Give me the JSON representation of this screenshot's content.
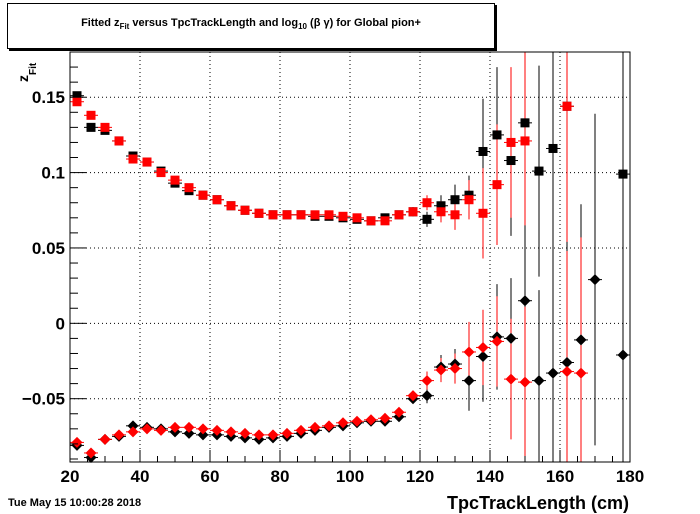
{
  "title": {
    "part1": "Fitted  z",
    "sub1": "Fit",
    "part2": "  versus TpcTrackLength and log",
    "sub2": "10",
    "part3": " (β γ) for Global pion+"
  },
  "timestamp": "Tue May 15 10:00:28 2018",
  "colors": {
    "series1": "#000000",
    "series2": "#ff0000",
    "frame": "#000000",
    "grid": "#000000"
  },
  "chart_data": {
    "type": "scatter",
    "title": "Fitted  zFit  versus TpcTrackLength and log10 (β γ) for Global pion+",
    "xlabel": "TpcTrackLength (cm)",
    "ylabel_main": "z",
    "ylabel_sub": "Fit",
    "xlim": [
      20,
      180
    ],
    "ylim": [
      -0.092,
      0.18
    ],
    "xticks": [
      20,
      40,
      60,
      80,
      100,
      120,
      140,
      160,
      180
    ],
    "xtick_labels": [
      "20",
      "40",
      "60",
      "80",
      "100",
      "120",
      "140",
      "160",
      "180"
    ],
    "yticks": [
      -0.05,
      0,
      0.05,
      0.1,
      0.15
    ],
    "ytick_labels": [
      "−0.05",
      "0",
      "0.05",
      "0.1",
      "0.15"
    ],
    "grid": true,
    "series": [
      {
        "marker": "square",
        "color": "#000000",
        "points": [
          [
            22,
            0.151,
            0.002
          ],
          [
            26,
            0.13,
            0.002
          ],
          [
            30,
            0.128,
            0.002
          ],
          [
            34,
            0.121,
            0.002
          ],
          [
            38,
            0.111,
            0.002
          ],
          [
            42,
            0.107,
            0.002
          ],
          [
            46,
            0.101,
            0.002
          ],
          [
            50,
            0.093,
            0.002
          ],
          [
            54,
            0.088,
            0.002
          ],
          [
            58,
            0.085,
            0.002
          ],
          [
            62,
            0.082,
            0.002
          ],
          [
            66,
            0.078,
            0.002
          ],
          [
            70,
            0.075,
            0.002
          ],
          [
            74,
            0.073,
            0.002
          ],
          [
            78,
            0.072,
            0.002
          ],
          [
            82,
            0.072,
            0.002
          ],
          [
            86,
            0.072,
            0.002
          ],
          [
            90,
            0.071,
            0.002
          ],
          [
            94,
            0.071,
            0.002
          ],
          [
            98,
            0.07,
            0.002
          ],
          [
            102,
            0.069,
            0.002
          ],
          [
            106,
            0.068,
            0.002
          ],
          [
            110,
            0.07,
            0.002
          ],
          [
            114,
            0.072,
            0.002
          ],
          [
            118,
            0.074,
            0.003
          ],
          [
            122,
            0.069,
            0.005
          ],
          [
            126,
            0.078,
            0.007
          ],
          [
            130,
            0.082,
            0.01
          ],
          [
            134,
            0.085,
            0.013
          ],
          [
            138,
            0.114,
            0.035
          ],
          [
            142,
            0.125,
            0.045
          ],
          [
            146,
            0.108,
            0.05
          ],
          [
            150,
            0.133,
            0.055
          ],
          [
            154,
            0.101,
            0.07
          ],
          [
            158,
            0.116,
            0.09
          ],
          [
            162,
            0.144,
            0.11
          ],
          [
            178,
            0.099,
            0.14
          ]
        ]
      },
      {
        "marker": "square",
        "color": "#ff0000",
        "points": [
          [
            22,
            0.147,
            0.002
          ],
          [
            26,
            0.138,
            0.002
          ],
          [
            30,
            0.13,
            0.002
          ],
          [
            34,
            0.121,
            0.002
          ],
          [
            38,
            0.109,
            0.002
          ],
          [
            42,
            0.107,
            0.002
          ],
          [
            46,
            0.1,
            0.002
          ],
          [
            50,
            0.095,
            0.002
          ],
          [
            54,
            0.09,
            0.002
          ],
          [
            58,
            0.085,
            0.002
          ],
          [
            62,
            0.082,
            0.002
          ],
          [
            66,
            0.078,
            0.002
          ],
          [
            70,
            0.075,
            0.002
          ],
          [
            74,
            0.073,
            0.002
          ],
          [
            78,
            0.072,
            0.002
          ],
          [
            82,
            0.072,
            0.002
          ],
          [
            86,
            0.072,
            0.002
          ],
          [
            90,
            0.072,
            0.002
          ],
          [
            94,
            0.072,
            0.002
          ],
          [
            98,
            0.071,
            0.002
          ],
          [
            102,
            0.07,
            0.002
          ],
          [
            106,
            0.068,
            0.002
          ],
          [
            110,
            0.068,
            0.002
          ],
          [
            114,
            0.072,
            0.002
          ],
          [
            118,
            0.074,
            0.003
          ],
          [
            122,
            0.08,
            0.005
          ],
          [
            126,
            0.074,
            0.007
          ],
          [
            130,
            0.072,
            0.01
          ],
          [
            134,
            0.082,
            0.013
          ],
          [
            138,
            0.073,
            0.03
          ],
          [
            142,
            0.092,
            0.04
          ],
          [
            146,
            0.12,
            0.05
          ],
          [
            150,
            0.121,
            0.06
          ],
          [
            162,
            0.144,
            0.11
          ]
        ]
      },
      {
        "marker": "diamond",
        "color": "#000000",
        "points": [
          [
            22,
            -0.081,
            0.002
          ],
          [
            26,
            -0.089,
            0.002
          ],
          [
            30,
            -0.077,
            0.002
          ],
          [
            34,
            -0.075,
            0.002
          ],
          [
            38,
            -0.068,
            0.002
          ],
          [
            42,
            -0.069,
            0.002
          ],
          [
            46,
            -0.07,
            0.002
          ],
          [
            50,
            -0.072,
            0.002
          ],
          [
            54,
            -0.073,
            0.002
          ],
          [
            58,
            -0.074,
            0.002
          ],
          [
            62,
            -0.074,
            0.002
          ],
          [
            66,
            -0.075,
            0.002
          ],
          [
            70,
            -0.076,
            0.002
          ],
          [
            74,
            -0.077,
            0.002
          ],
          [
            78,
            -0.076,
            0.002
          ],
          [
            82,
            -0.075,
            0.002
          ],
          [
            86,
            -0.073,
            0.002
          ],
          [
            90,
            -0.071,
            0.002
          ],
          [
            94,
            -0.069,
            0.002
          ],
          [
            98,
            -0.068,
            0.002
          ],
          [
            102,
            -0.066,
            0.002
          ],
          [
            106,
            -0.065,
            0.002
          ],
          [
            110,
            -0.065,
            0.002
          ],
          [
            114,
            -0.062,
            0.002
          ],
          [
            118,
            -0.05,
            0.003
          ],
          [
            122,
            -0.048,
            0.005
          ],
          [
            126,
            -0.029,
            0.008
          ],
          [
            130,
            -0.027,
            0.01
          ],
          [
            134,
            -0.038,
            0.02
          ],
          [
            138,
            -0.022,
            0.03
          ],
          [
            142,
            -0.009,
            0.035
          ],
          [
            146,
            -0.01,
            0.04
          ],
          [
            150,
            0.015,
            0.05
          ],
          [
            154,
            -0.038,
            0.06
          ],
          [
            158,
            -0.033,
            0.07
          ],
          [
            162,
            -0.026,
            0.08
          ],
          [
            166,
            -0.011,
            0.09
          ],
          [
            170,
            0.029,
            0.11
          ],
          [
            178,
            -0.021,
            0.13
          ]
        ]
      },
      {
        "marker": "diamond",
        "color": "#ff0000",
        "points": [
          [
            22,
            -0.079,
            0.002
          ],
          [
            26,
            -0.086,
            0.002
          ],
          [
            30,
            -0.077,
            0.002
          ],
          [
            34,
            -0.074,
            0.002
          ],
          [
            38,
            -0.072,
            0.002
          ],
          [
            42,
            -0.07,
            0.002
          ],
          [
            46,
            -0.071,
            0.002
          ],
          [
            50,
            -0.069,
            0.002
          ],
          [
            54,
            -0.069,
            0.002
          ],
          [
            58,
            -0.07,
            0.002
          ],
          [
            62,
            -0.071,
            0.002
          ],
          [
            66,
            -0.072,
            0.002
          ],
          [
            70,
            -0.073,
            0.002
          ],
          [
            74,
            -0.074,
            0.002
          ],
          [
            78,
            -0.074,
            0.002
          ],
          [
            82,
            -0.073,
            0.002
          ],
          [
            86,
            -0.071,
            0.002
          ],
          [
            90,
            -0.069,
            0.002
          ],
          [
            94,
            -0.068,
            0.002
          ],
          [
            98,
            -0.066,
            0.002
          ],
          [
            102,
            -0.065,
            0.002
          ],
          [
            106,
            -0.064,
            0.002
          ],
          [
            110,
            -0.063,
            0.002
          ],
          [
            114,
            -0.059,
            0.002
          ],
          [
            118,
            -0.048,
            0.003
          ],
          [
            122,
            -0.038,
            0.006
          ],
          [
            126,
            -0.031,
            0.008
          ],
          [
            130,
            -0.03,
            0.01
          ],
          [
            134,
            -0.019,
            0.02
          ],
          [
            138,
            -0.016,
            0.025
          ],
          [
            142,
            -0.012,
            0.03
          ],
          [
            146,
            -0.037,
            0.04
          ],
          [
            150,
            -0.039,
            0.05
          ],
          [
            162,
            -0.032,
            0.08
          ],
          [
            166,
            -0.033,
            0.09
          ]
        ]
      }
    ]
  }
}
